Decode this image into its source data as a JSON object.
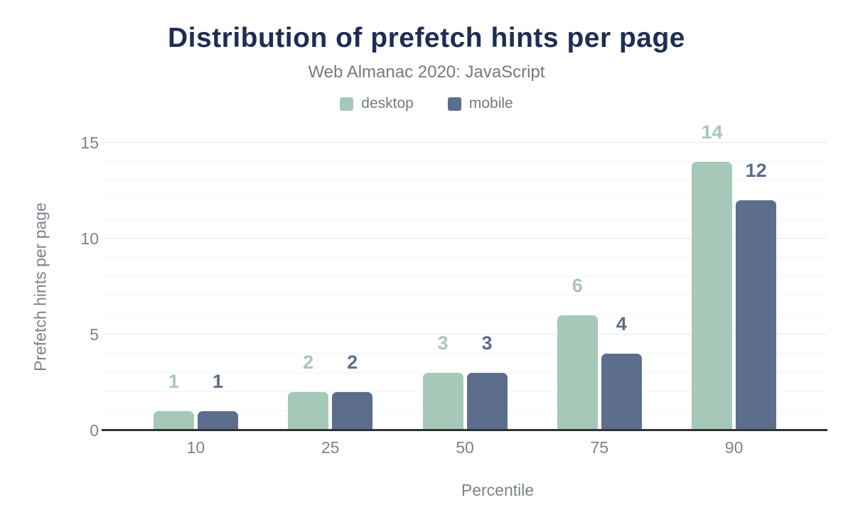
{
  "chart_data": {
    "type": "bar",
    "title": "Distribution of prefetch hints per page",
    "subtitle": "Web Almanac 2020: JavaScript",
    "xlabel": "Percentile",
    "ylabel": "Prefetch hints per page",
    "categories": [
      "10",
      "25",
      "50",
      "75",
      "90"
    ],
    "series": [
      {
        "name": "desktop",
        "color": "#a6c8b8",
        "values": [
          1,
          2,
          3,
          6,
          14
        ]
      },
      {
        "name": "mobile",
        "color": "#5c6e8b",
        "values": [
          1,
          2,
          3,
          4,
          12
        ]
      }
    ],
    "ylim": [
      0,
      15
    ],
    "yticks": [
      0,
      5,
      10,
      15
    ],
    "minor_grid_step": 1,
    "grid": true,
    "legend_position": "top",
    "colors": {
      "title": "#1e2e52",
      "muted_text": "#75797f",
      "tick_text": "#7d828b",
      "axis_line": "#2f3136",
      "major_grid": "#e8e8ec",
      "minor_grid": "#f4f4f7",
      "background": "#ffffff"
    }
  }
}
